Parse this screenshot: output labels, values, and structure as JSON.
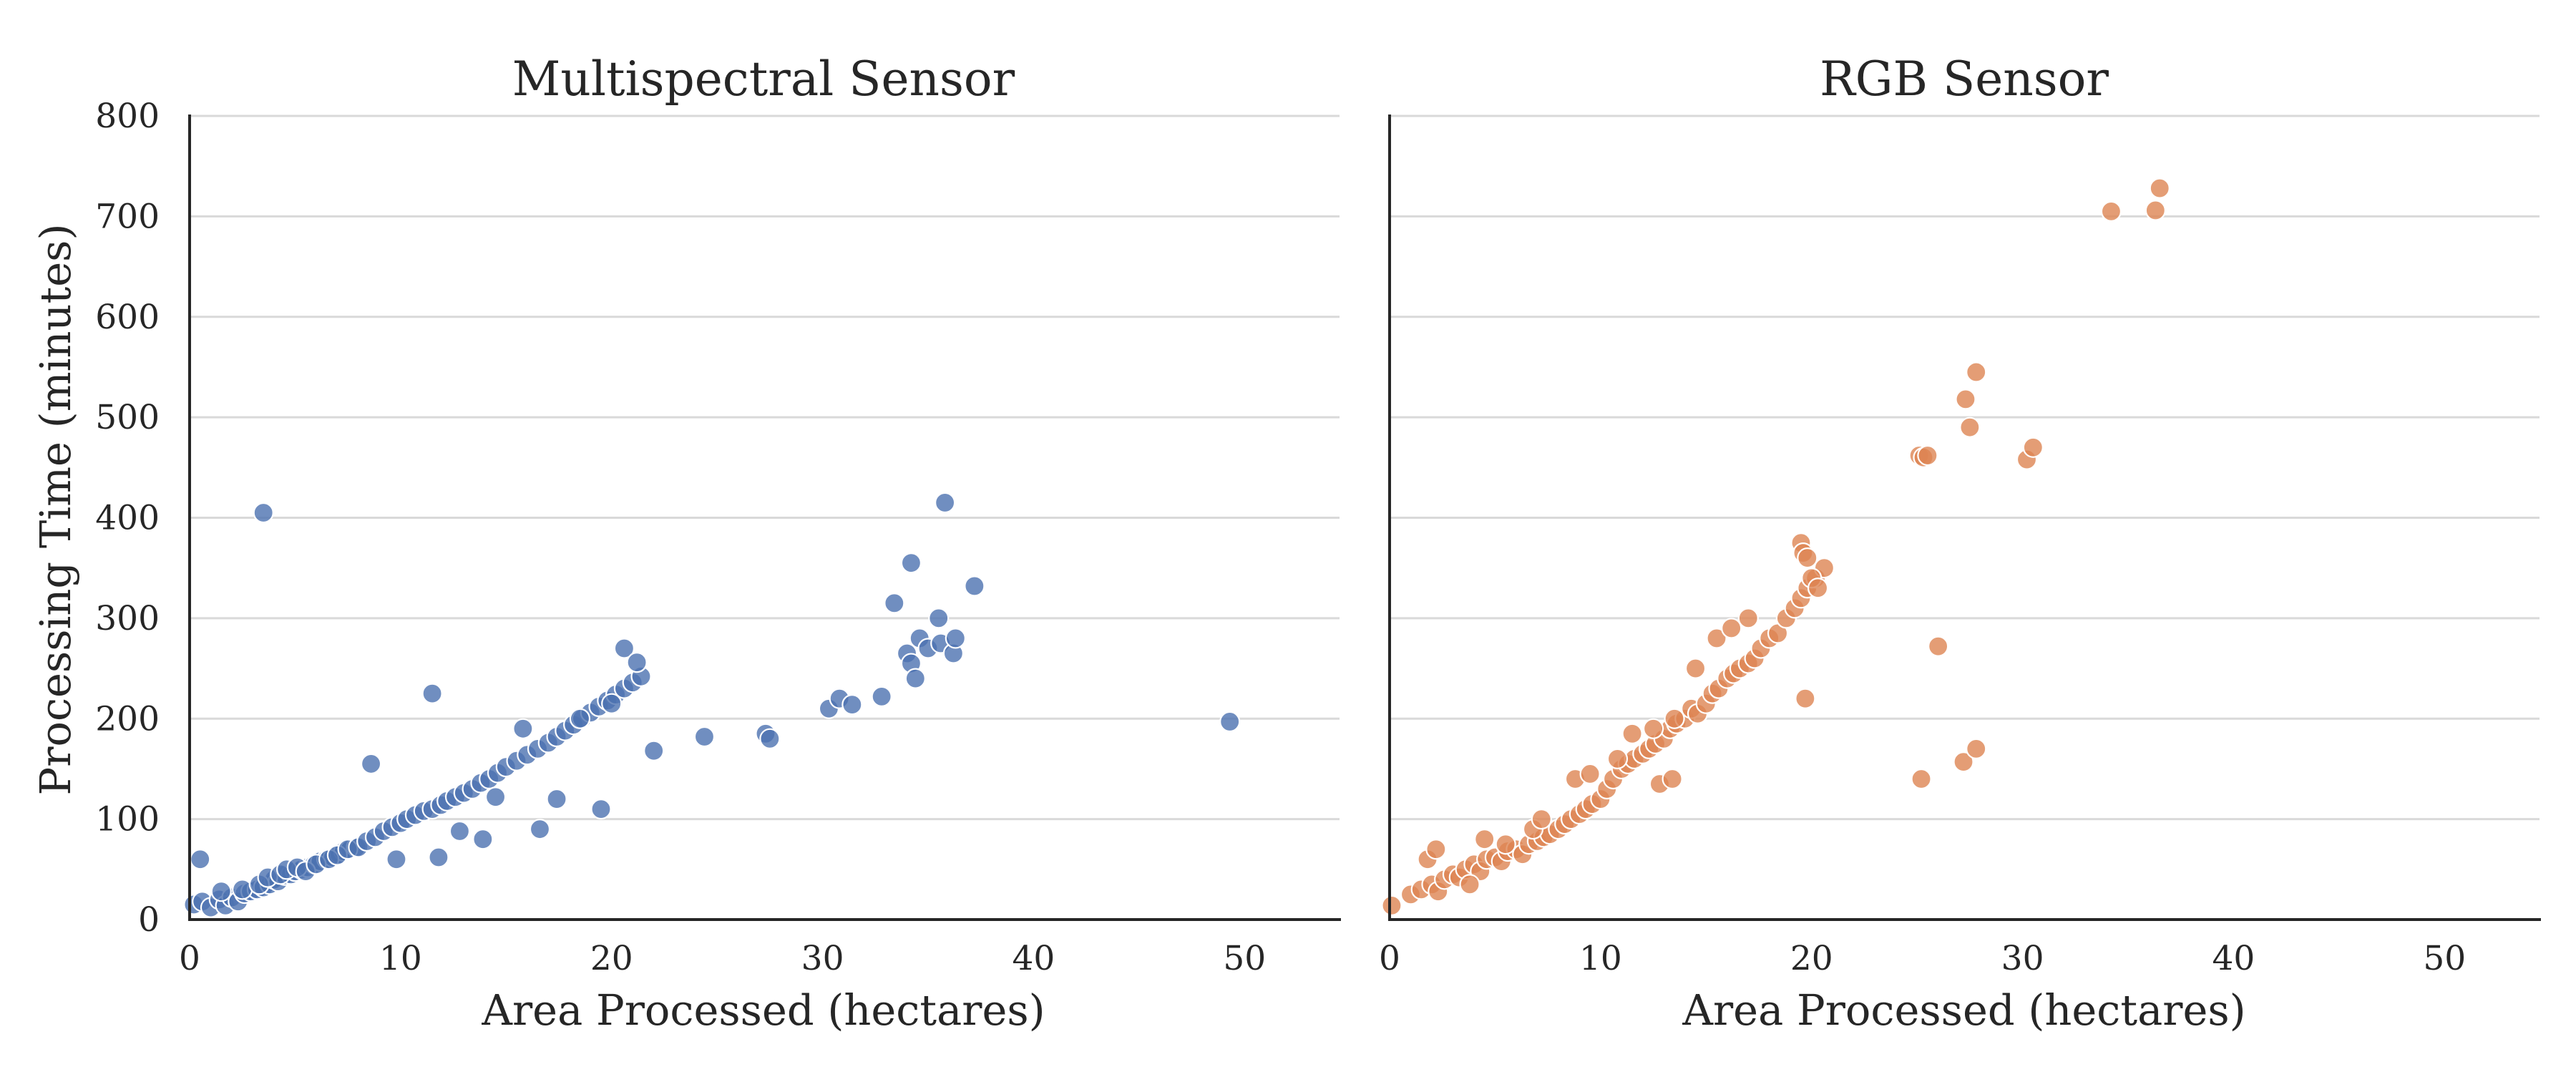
{
  "colors": {
    "multispectral": "#4c72b0",
    "rgb": "#dd8452",
    "grid": "#d9d9d9",
    "axis": "#262626",
    "marker_edge": "#ffffff"
  },
  "figure": {
    "shared_ylabel": "Processing Time (minutes)"
  },
  "chart_data": [
    {
      "type": "scatter",
      "title": "Multispectral Sensor",
      "xlabel": "Area Processed (hectares)",
      "ylabel": "Processing Time (minutes)",
      "xlim": [
        0,
        54.5
      ],
      "ylim": [
        0,
        800
      ],
      "xticks": [
        0,
        10,
        20,
        30,
        40,
        50
      ],
      "yticks": [
        0,
        100,
        200,
        300,
        400,
        500,
        600,
        700,
        800
      ],
      "grid": "horizontal",
      "series": [
        {
          "name": "Multispectral Sensor",
          "color_key": "multispectral",
          "x": [
            0.2,
            0.5,
            0.6,
            1.0,
            1.4,
            1.7,
            2.0,
            2.3,
            2.6,
            2.9,
            3.2,
            3.5,
            3.8,
            4.0,
            4.2,
            4.5,
            4.8,
            5.0,
            5.3,
            5.6,
            5.9,
            6.2,
            6.5,
            6.8,
            7.1,
            7.3,
            7.6,
            7.9,
            1.5,
            2.5,
            3.3,
            3.7,
            4.3,
            4.6,
            5.1,
            5.5,
            6.0,
            6.6,
            7.0,
            7.5,
            8.0,
            8.4,
            8.8,
            9.2,
            9.6,
            10.0,
            10.3,
            10.7,
            11.1,
            11.5,
            11.9,
            12.2,
            12.6,
            13.0,
            13.4,
            13.8,
            14.2,
            14.6,
            15.0,
            15.5,
            16.0,
            16.5,
            17.0,
            17.4,
            17.8,
            18.2,
            18.6,
            19.0,
            19.4,
            19.8,
            20.2,
            20.6,
            21.0,
            21.4,
            22.0,
            11.5,
            8.6,
            9.8,
            11.8,
            13.9,
            16.6,
            17.4,
            19.5,
            12.8,
            14.5,
            15.8,
            18.5,
            20.0,
            20.6,
            21.2,
            24.4,
            27.3,
            27.5,
            30.3,
            30.8,
            31.4,
            32.8,
            33.4,
            34.0,
            34.2,
            34.4,
            34.6,
            34.2,
            35.0,
            35.5,
            35.6,
            36.2,
            36.3,
            37.2,
            35.8,
            3.5,
            49.3
          ],
          "y": [
            15,
            60,
            18,
            12,
            20,
            14,
            22,
            18,
            26,
            28,
            30,
            32,
            35,
            40,
            38,
            44,
            45,
            48,
            50,
            52,
            55,
            58,
            60,
            62,
            65,
            68,
            70,
            72,
            28,
            30,
            35,
            42,
            45,
            50,
            52,
            48,
            55,
            60,
            64,
            70,
            72,
            78,
            82,
            88,
            92,
            96,
            100,
            104,
            108,
            110,
            114,
            118,
            122,
            126,
            130,
            136,
            140,
            146,
            152,
            158,
            164,
            170,
            176,
            182,
            188,
            194,
            200,
            206,
            212,
            218,
            224,
            230,
            236,
            242,
            168,
            225,
            155,
            60,
            62,
            80,
            90,
            120,
            110,
            88,
            122,
            190,
            200,
            215,
            270,
            256,
            182,
            185,
            180,
            210,
            220,
            214,
            222,
            315,
            265,
            255,
            240,
            280,
            355,
            270,
            300,
            275,
            265,
            280,
            332,
            415,
            405,
            197
          ]
        }
      ]
    },
    {
      "type": "scatter",
      "title": "RGB Sensor",
      "xlabel": "Area Processed (hectares)",
      "ylabel": "",
      "xlim": [
        0,
        54.5
      ],
      "ylim": [
        0,
        800
      ],
      "xticks": [
        0,
        10,
        20,
        30,
        40,
        50
      ],
      "yticks": [
        0,
        100,
        200,
        300,
        400,
        500,
        600,
        700,
        800
      ],
      "grid": "horizontal",
      "series": [
        {
          "name": "RGB Sensor",
          "color_key": "rgb",
          "x": [
            0.1,
            1.0,
            1.5,
            2.0,
            2.3,
            2.6,
            3.0,
            3.3,
            3.6,
            4.0,
            4.3,
            4.6,
            5.0,
            5.3,
            5.6,
            6.0,
            6.3,
            6.6,
            7.0,
            7.3,
            7.6,
            8.0,
            8.3,
            8.6,
            9.0,
            9.3,
            9.6,
            10.0,
            10.3,
            10.6,
            11.0,
            11.3,
            11.6,
            12.0,
            12.3,
            12.6,
            13.0,
            13.3,
            13.6,
            14.0,
            14.3,
            14.6,
            15.0,
            15.3,
            15.6,
            16.0,
            16.3,
            16.6,
            17.0,
            17.3,
            17.6,
            18.0,
            18.4,
            18.8,
            19.2,
            19.5,
            19.8,
            20.2,
            20.6,
            1.8,
            2.2,
            3.8,
            4.5,
            5.5,
            6.8,
            7.2,
            8.8,
            9.5,
            10.8,
            11.5,
            12.5,
            13.5,
            14.5,
            15.5,
            16.2,
            17.0,
            19.5,
            19.6,
            19.8,
            20.0,
            20.3,
            12.8,
            13.4,
            19.7,
            25.1,
            25.3,
            25.5,
            26.0,
            27.3,
            27.5,
            27.8,
            30.2,
            30.5,
            25.2,
            27.2,
            27.8,
            34.2,
            36.3,
            36.5
          ],
          "y": [
            14,
            25,
            30,
            35,
            28,
            40,
            45,
            42,
            50,
            55,
            48,
            60,
            62,
            58,
            68,
            70,
            65,
            75,
            78,
            82,
            85,
            90,
            95,
            100,
            105,
            110,
            115,
            120,
            130,
            140,
            150,
            155,
            160,
            165,
            170,
            175,
            180,
            190,
            195,
            200,
            210,
            205,
            215,
            225,
            230,
            240,
            245,
            250,
            255,
            260,
            270,
            280,
            285,
            300,
            310,
            320,
            330,
            340,
            350,
            60,
            70,
            35,
            80,
            75,
            90,
            100,
            140,
            145,
            160,
            185,
            190,
            200,
            250,
            280,
            290,
            300,
            375,
            365,
            360,
            340,
            330,
            135,
            140,
            220,
            462,
            460,
            462,
            272,
            518,
            490,
            545,
            458,
            470,
            140,
            157,
            170,
            705,
            706,
            728
          ]
        }
      ]
    }
  ]
}
